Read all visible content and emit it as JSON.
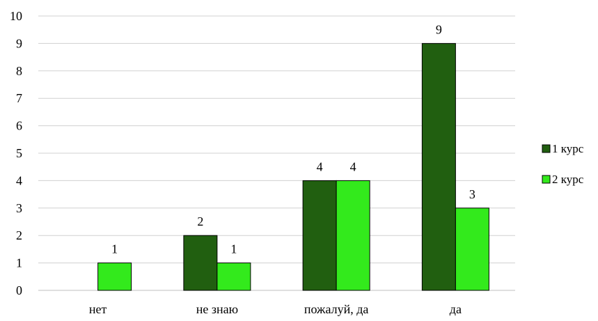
{
  "chart_data": {
    "type": "bar",
    "title": "",
    "xlabel": "",
    "ylabel": "",
    "categories": [
      "нет",
      "не знаю",
      "пожалуй, да",
      "да"
    ],
    "series": [
      {
        "name": "1 курс",
        "values": [
          0,
          2,
          4,
          9
        ],
        "labels": [
          "",
          "2",
          "4",
          "9"
        ],
        "color": "#215f10"
      },
      {
        "name": "2 курс",
        "values": [
          1,
          1,
          4,
          3
        ],
        "labels": [
          "1",
          "1",
          "4",
          "3"
        ],
        "color": "#33ea1c"
      }
    ],
    "ylim": [
      0,
      10
    ],
    "yticks": [
      "0",
      "1",
      "2",
      "3",
      "4",
      "5",
      "6",
      "7",
      "8",
      "9",
      "10"
    ],
    "grid": true,
    "legend_position": "right"
  }
}
